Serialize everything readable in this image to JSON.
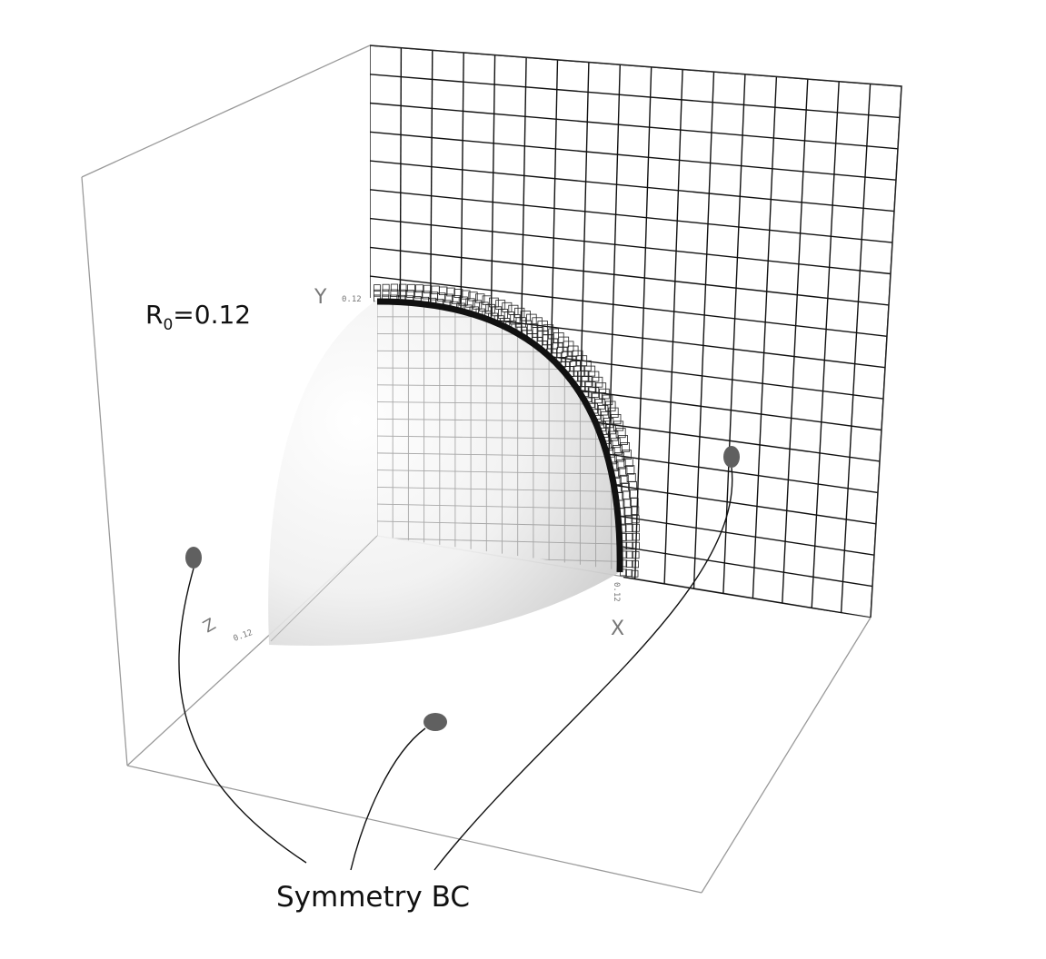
{
  "radius_label": {
    "prefix": "R",
    "subscript": "0",
    "suffix": "=0.12"
  },
  "axes": {
    "x": {
      "name": "X",
      "tick": "0.12"
    },
    "y": {
      "name": "Y",
      "tick": "0.12"
    },
    "z": {
      "name": "Z",
      "tick": "0.12"
    }
  },
  "callout": {
    "label": "Symmetry BC"
  },
  "colors": {
    "mesh": "#111111",
    "box_edges": "#9a9a9a",
    "marker": "#606060",
    "sphere_light": "#ffffff",
    "sphere_dark": "#cfcfcf"
  }
}
